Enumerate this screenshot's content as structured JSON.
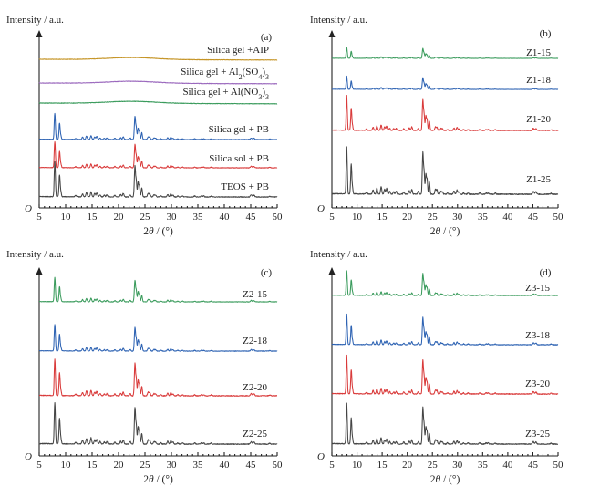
{
  "figure_text": {
    "y_axis_label": "Intensity / a.u.",
    "x_axis_label_parts": [
      "2",
      "θ",
      " / (°)"
    ],
    "origin_label": "O"
  },
  "colors": {
    "green": "#3a9b5c",
    "blue": "#2e63b3",
    "red": "#d93a3a",
    "black": "#444444",
    "gold": "#c59425",
    "purple": "#9a68bd"
  },
  "chart_data": [
    {
      "type": "line",
      "panel": "(a)",
      "xlabel": "2θ / (°)",
      "ylabel": "Intensity / a.u.",
      "xlim": [
        5,
        50
      ],
      "xticks": [
        5,
        10,
        15,
        20,
        25,
        30,
        35,
        40,
        45,
        50
      ],
      "series": [
        {
          "name": "Silica gel +AIP",
          "color": "gold",
          "pattern": "amorphous"
        },
        {
          "name": "Silica gel + Al2(SO4)3",
          "label_parts": [
            "Silica gel + Al",
            "2",
            "(SO",
            "4",
            ")",
            "3"
          ],
          "color": "purple",
          "pattern": "amorphous"
        },
        {
          "name": "Silica gel + Al(NO3)3",
          "label_parts": [
            "Silica gel + Al(NO",
            "3",
            ")",
            "3"
          ],
          "color": "green",
          "pattern": "amorphous"
        },
        {
          "name": "Silica gel + PB",
          "color": "blue",
          "pattern": "zeolite",
          "scale": 0.75
        },
        {
          "name": "Silica sol + PB",
          "color": "red",
          "pattern": "zeolite",
          "scale": 0.75
        },
        {
          "name": "TEOS + PB",
          "color": "black",
          "pattern": "zeolite",
          "scale": 0.85
        }
      ]
    },
    {
      "type": "line",
      "panel": "(b)",
      "xlabel": "2θ / (°)",
      "ylabel": "Intensity / a.u.",
      "xlim": [
        5,
        50
      ],
      "xticks": [
        5,
        10,
        15,
        20,
        25,
        30,
        35,
        40,
        45,
        50
      ],
      "series": [
        {
          "name": "Z1-15",
          "color": "green",
          "pattern": "zeolite",
          "scale": 0.55
        },
        {
          "name": "Z1-18",
          "color": "blue",
          "pattern": "zeolite",
          "scale": 0.6
        },
        {
          "name": "Z1-20",
          "color": "red",
          "pattern": "zeolite",
          "scale": 0.95
        },
        {
          "name": "Z1-25",
          "color": "black",
          "pattern": "zeolite",
          "scale": 1.0
        }
      ]
    },
    {
      "type": "line",
      "panel": "(c)",
      "xlabel": "2θ / (°)",
      "ylabel": "Intensity / a.u.",
      "xlim": [
        5,
        50
      ],
      "xticks": [
        5,
        10,
        15,
        20,
        25,
        30,
        35,
        40,
        45,
        50
      ],
      "series": [
        {
          "name": "Z2-15",
          "color": "green",
          "pattern": "zeolite",
          "scale": 0.8
        },
        {
          "name": "Z2-18",
          "color": "blue",
          "pattern": "zeolite",
          "scale": 0.85
        },
        {
          "name": "Z2-20",
          "color": "red",
          "pattern": "zeolite",
          "scale": 0.95
        },
        {
          "name": "Z2-25",
          "color": "black",
          "pattern": "zeolite",
          "scale": 1.0
        }
      ]
    },
    {
      "type": "line",
      "panel": "(d)",
      "xlabel": "2θ / (°)",
      "ylabel": "Intensity / a.u.",
      "xlim": [
        5,
        50
      ],
      "xticks": [
        5,
        10,
        15,
        20,
        25,
        30,
        35,
        40,
        45,
        50
      ],
      "series": [
        {
          "name": "Z3-15",
          "color": "green",
          "pattern": "zeolite",
          "scale": 0.9
        },
        {
          "name": "Z3-18",
          "color": "blue",
          "pattern": "zeolite",
          "scale": 0.95
        },
        {
          "name": "Z3-20",
          "color": "red",
          "pattern": "zeolite",
          "scale": 1.0
        },
        {
          "name": "Z3-25",
          "color": "black",
          "pattern": "zeolite",
          "scale": 1.0
        }
      ]
    }
  ]
}
